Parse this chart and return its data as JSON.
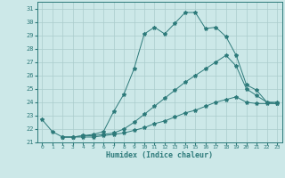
{
  "xlabel": "Humidex (Indice chaleur)",
  "bg_color": "#cce8e8",
  "grid_color": "#aacccc",
  "line_color": "#2d7a7a",
  "xlim": [
    -0.5,
    23.5
  ],
  "ylim": [
    21,
    31.5
  ],
  "yticks": [
    21,
    22,
    23,
    24,
    25,
    26,
    27,
    28,
    29,
    30,
    31
  ],
  "xticks": [
    0,
    1,
    2,
    3,
    4,
    5,
    6,
    7,
    8,
    9,
    10,
    11,
    12,
    13,
    14,
    15,
    16,
    17,
    18,
    19,
    20,
    21,
    22,
    23
  ],
  "curve1_x": [
    0,
    1,
    2,
    3,
    4,
    5,
    6,
    7,
    8,
    9,
    10,
    11,
    12,
    13,
    14,
    15,
    16,
    17,
    18,
    19,
    20,
    21,
    22,
    23
  ],
  "curve1_y": [
    22.7,
    21.8,
    21.4,
    21.4,
    21.5,
    21.6,
    21.8,
    23.3,
    24.6,
    26.5,
    29.1,
    29.6,
    29.1,
    29.9,
    30.7,
    30.7,
    29.5,
    29.6,
    28.9,
    27.5,
    25.3,
    24.9,
    24.0,
    24.0
  ],
  "curve2_x": [
    2,
    3,
    4,
    5,
    6,
    7,
    8,
    9,
    10,
    11,
    12,
    13,
    14,
    15,
    16,
    17,
    18,
    19,
    20,
    21,
    22,
    23
  ],
  "curve2_y": [
    21.4,
    21.4,
    21.5,
    21.5,
    21.6,
    21.7,
    22.0,
    22.5,
    23.1,
    23.7,
    24.3,
    24.9,
    25.5,
    26.0,
    26.5,
    27.0,
    27.5,
    26.7,
    25.0,
    24.5,
    24.0,
    23.9
  ],
  "curve3_x": [
    2,
    3,
    4,
    5,
    6,
    7,
    8,
    9,
    10,
    11,
    12,
    13,
    14,
    15,
    16,
    17,
    18,
    19,
    20,
    21,
    22,
    23
  ],
  "curve3_y": [
    21.4,
    21.4,
    21.4,
    21.4,
    21.5,
    21.6,
    21.7,
    21.9,
    22.1,
    22.4,
    22.6,
    22.9,
    23.2,
    23.4,
    23.7,
    24.0,
    24.2,
    24.4,
    24.0,
    23.9,
    23.9,
    23.9
  ]
}
